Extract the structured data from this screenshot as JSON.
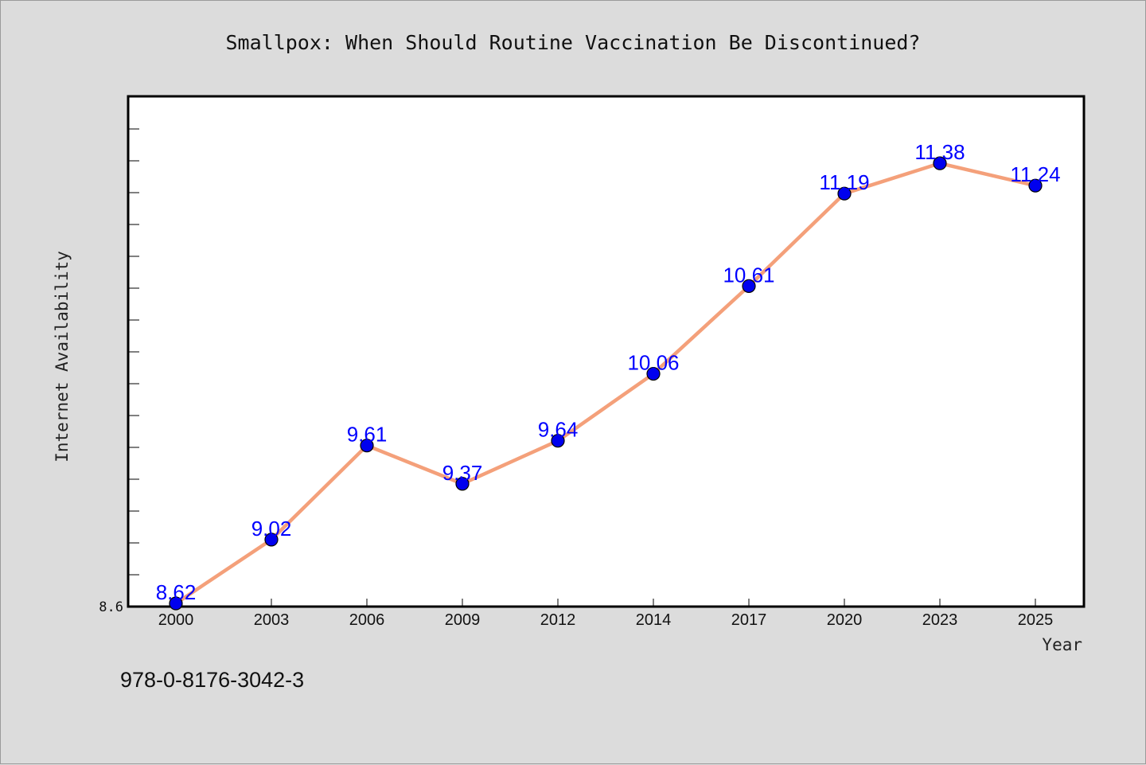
{
  "chart_data": {
    "type": "line",
    "title": "Smallpox: When Should Routine Vaccination Be Discontinued?",
    "xlabel": "Year",
    "ylabel": "Internet Availability",
    "categories": [
      "2000",
      "2003",
      "2006",
      "2009",
      "2012",
      "2014",
      "2017",
      "2020",
      "2023",
      "2025"
    ],
    "series": [
      {
        "values": [
          8.62,
          9.02,
          9.61,
          9.37,
          9.64,
          10.06,
          10.61,
          11.19,
          11.38,
          11.24
        ]
      }
    ],
    "yticks": [
      "8.6"
    ],
    "ylim": [
      8.6,
      11.8
    ],
    "grid": false,
    "colors": {
      "line": "#f4a07a",
      "marker": "#0000ee",
      "data_label": "#0000ff",
      "plot_bg": "#ffffff",
      "page_bg": "#dcdcdc"
    }
  },
  "footnote": "978-0-8176-3042-3"
}
